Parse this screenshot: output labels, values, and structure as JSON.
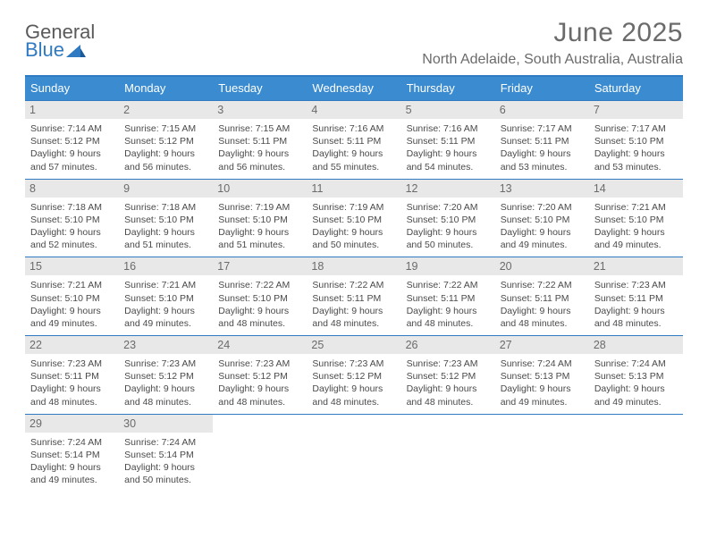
{
  "logo": {
    "line1": "General",
    "line2": "Blue"
  },
  "title": "June 2025",
  "subtitle": "North Adelaide, South Australia, Australia",
  "colors": {
    "header_bg": "#3a8bd0",
    "border": "#2f7ac0",
    "daynum_bg": "#e8e8e8",
    "text": "#4a4a4a",
    "title_text": "#6b6b6b"
  },
  "dayHeaders": [
    "Sunday",
    "Monday",
    "Tuesday",
    "Wednesday",
    "Thursday",
    "Friday",
    "Saturday"
  ],
  "weeks": [
    [
      {
        "n": "1",
        "sr": "7:14 AM",
        "ss": "5:12 PM",
        "dl": "9 hours and 57 minutes."
      },
      {
        "n": "2",
        "sr": "7:15 AM",
        "ss": "5:12 PM",
        "dl": "9 hours and 56 minutes."
      },
      {
        "n": "3",
        "sr": "7:15 AM",
        "ss": "5:11 PM",
        "dl": "9 hours and 56 minutes."
      },
      {
        "n": "4",
        "sr": "7:16 AM",
        "ss": "5:11 PM",
        "dl": "9 hours and 55 minutes."
      },
      {
        "n": "5",
        "sr": "7:16 AM",
        "ss": "5:11 PM",
        "dl": "9 hours and 54 minutes."
      },
      {
        "n": "6",
        "sr": "7:17 AM",
        "ss": "5:11 PM",
        "dl": "9 hours and 53 minutes."
      },
      {
        "n": "7",
        "sr": "7:17 AM",
        "ss": "5:10 PM",
        "dl": "9 hours and 53 minutes."
      }
    ],
    [
      {
        "n": "8",
        "sr": "7:18 AM",
        "ss": "5:10 PM",
        "dl": "9 hours and 52 minutes."
      },
      {
        "n": "9",
        "sr": "7:18 AM",
        "ss": "5:10 PM",
        "dl": "9 hours and 51 minutes."
      },
      {
        "n": "10",
        "sr": "7:19 AM",
        "ss": "5:10 PM",
        "dl": "9 hours and 51 minutes."
      },
      {
        "n": "11",
        "sr": "7:19 AM",
        "ss": "5:10 PM",
        "dl": "9 hours and 50 minutes."
      },
      {
        "n": "12",
        "sr": "7:20 AM",
        "ss": "5:10 PM",
        "dl": "9 hours and 50 minutes."
      },
      {
        "n": "13",
        "sr": "7:20 AM",
        "ss": "5:10 PM",
        "dl": "9 hours and 49 minutes."
      },
      {
        "n": "14",
        "sr": "7:21 AM",
        "ss": "5:10 PM",
        "dl": "9 hours and 49 minutes."
      }
    ],
    [
      {
        "n": "15",
        "sr": "7:21 AM",
        "ss": "5:10 PM",
        "dl": "9 hours and 49 minutes."
      },
      {
        "n": "16",
        "sr": "7:21 AM",
        "ss": "5:10 PM",
        "dl": "9 hours and 49 minutes."
      },
      {
        "n": "17",
        "sr": "7:22 AM",
        "ss": "5:10 PM",
        "dl": "9 hours and 48 minutes."
      },
      {
        "n": "18",
        "sr": "7:22 AM",
        "ss": "5:11 PM",
        "dl": "9 hours and 48 minutes."
      },
      {
        "n": "19",
        "sr": "7:22 AM",
        "ss": "5:11 PM",
        "dl": "9 hours and 48 minutes."
      },
      {
        "n": "20",
        "sr": "7:22 AM",
        "ss": "5:11 PM",
        "dl": "9 hours and 48 minutes."
      },
      {
        "n": "21",
        "sr": "7:23 AM",
        "ss": "5:11 PM",
        "dl": "9 hours and 48 minutes."
      }
    ],
    [
      {
        "n": "22",
        "sr": "7:23 AM",
        "ss": "5:11 PM",
        "dl": "9 hours and 48 minutes."
      },
      {
        "n": "23",
        "sr": "7:23 AM",
        "ss": "5:12 PM",
        "dl": "9 hours and 48 minutes."
      },
      {
        "n": "24",
        "sr": "7:23 AM",
        "ss": "5:12 PM",
        "dl": "9 hours and 48 minutes."
      },
      {
        "n": "25",
        "sr": "7:23 AM",
        "ss": "5:12 PM",
        "dl": "9 hours and 48 minutes."
      },
      {
        "n": "26",
        "sr": "7:23 AM",
        "ss": "5:12 PM",
        "dl": "9 hours and 48 minutes."
      },
      {
        "n": "27",
        "sr": "7:24 AM",
        "ss": "5:13 PM",
        "dl": "9 hours and 49 minutes."
      },
      {
        "n": "28",
        "sr": "7:24 AM",
        "ss": "5:13 PM",
        "dl": "9 hours and 49 minutes."
      }
    ],
    [
      {
        "n": "29",
        "sr": "7:24 AM",
        "ss": "5:14 PM",
        "dl": "9 hours and 49 minutes."
      },
      {
        "n": "30",
        "sr": "7:24 AM",
        "ss": "5:14 PM",
        "dl": "9 hours and 50 minutes."
      },
      null,
      null,
      null,
      null,
      null
    ]
  ],
  "labels": {
    "sunrise": "Sunrise: ",
    "sunset": "Sunset: ",
    "daylight": "Daylight: "
  }
}
